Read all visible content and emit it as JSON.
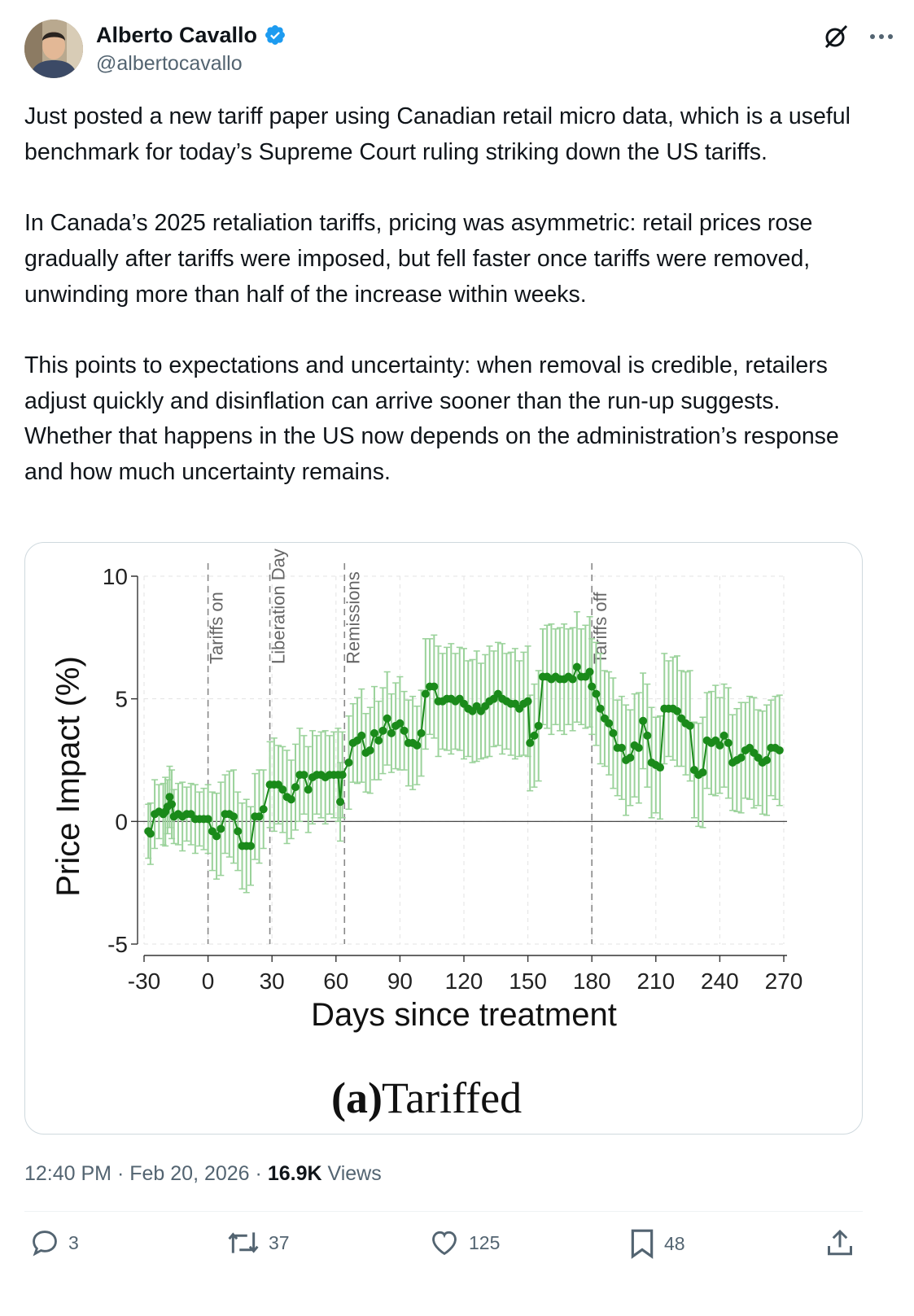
{
  "author": {
    "display_name": "Alberto Cavallo",
    "handle": "@albertocavallo",
    "verified": true,
    "avatar_icon": "avatar-photo"
  },
  "header_icons": [
    "grok-icon",
    "more-icon"
  ],
  "tweet": {
    "paragraphs": [
      "Just posted a new tariff paper using Canadian retail micro data, which is a useful benchmark for today’s Supreme Court ruling striking down the US tariffs.",
      "In Canada’s 2025 retaliation tariffs, pricing was asymmetric: retail prices rose gradually after tariffs were imposed, but fell faster once tariffs were removed, unwinding more than half of the increase within weeks.",
      "This points to expectations and uncertainty: when removal is credible, retailers adjust quickly and disinflation can arrive sooner than the run-up suggests. Whether that happens in the US now depends on the administration’s response and how much uncertainty remains."
    ]
  },
  "chart_data": {
    "type": "scatter",
    "title": "(a) Tariffed",
    "title_prefix": "(a)",
    "title_main": "Tariffed",
    "xlabel": "Days since treatment",
    "ylabel": "Price Impact (%)",
    "xlim": [
      -30,
      270
    ],
    "ylim": [
      -5,
      10
    ],
    "x_ticks": [
      -30,
      0,
      30,
      60,
      90,
      120,
      150,
      180,
      210,
      240,
      270
    ],
    "y_ticks": [
      -5,
      0,
      5,
      10
    ],
    "grid": true,
    "series_color": "#1a8a1a",
    "ci_color": "#9ad29a",
    "events": [
      {
        "day": 0,
        "label": "Tariffs on"
      },
      {
        "day": 29,
        "label": "Liberation Day"
      },
      {
        "day": 64,
        "label": "Remissions"
      },
      {
        "day": 180,
        "label": "Tariffs off"
      }
    ],
    "points": [
      [
        -28,
        -0.4
      ],
      [
        -27,
        -0.5
      ],
      [
        -25,
        0.3
      ],
      [
        -23,
        0.4
      ],
      [
        -21,
        0.3
      ],
      [
        -20,
        0.4
      ],
      [
        -19,
        0.6
      ],
      [
        -18,
        1.0
      ],
      [
        -17,
        0.7
      ],
      [
        -16,
        0.2
      ],
      [
        -14,
        0.3
      ],
      [
        -12,
        0.2
      ],
      [
        -10,
        0.3
      ],
      [
        -8,
        0.3
      ],
      [
        -6,
        0.1
      ],
      [
        -4,
        0.1
      ],
      [
        -2,
        0.1
      ],
      [
        0,
        0.1
      ],
      [
        2,
        -0.4
      ],
      [
        4,
        -0.6
      ],
      [
        6,
        -0.3
      ],
      [
        8,
        0.3
      ],
      [
        10,
        0.3
      ],
      [
        12,
        0.2
      ],
      [
        14,
        -0.4
      ],
      [
        16,
        -1.0
      ],
      [
        18,
        -1.0
      ],
      [
        20,
        -1.0
      ],
      [
        22,
        0.2
      ],
      [
        24,
        0.2
      ],
      [
        26,
        0.5
      ],
      [
        29,
        1.5
      ],
      [
        31,
        1.5
      ],
      [
        33,
        1.5
      ],
      [
        35,
        1.3
      ],
      [
        37,
        1.0
      ],
      [
        39,
        0.9
      ],
      [
        41,
        1.4
      ],
      [
        43,
        1.9
      ],
      [
        45,
        1.9
      ],
      [
        47,
        1.3
      ],
      [
        49,
        1.8
      ],
      [
        51,
        1.9
      ],
      [
        53,
        1.9
      ],
      [
        55,
        1.8
      ],
      [
        57,
        1.9
      ],
      [
        59,
        1.9
      ],
      [
        61,
        1.9
      ],
      [
        62,
        0.8
      ],
      [
        63,
        1.9
      ],
      [
        66,
        2.4
      ],
      [
        68,
        3.2
      ],
      [
        70,
        3.3
      ],
      [
        72,
        3.5
      ],
      [
        74,
        2.8
      ],
      [
        76,
        2.9
      ],
      [
        78,
        3.6
      ],
      [
        80,
        3.3
      ],
      [
        82,
        3.7
      ],
      [
        84,
        4.2
      ],
      [
        86,
        3.6
      ],
      [
        88,
        3.9
      ],
      [
        90,
        4.0
      ],
      [
        92,
        3.7
      ],
      [
        94,
        3.2
      ],
      [
        96,
        3.2
      ],
      [
        98,
        3.1
      ],
      [
        100,
        3.6
      ],
      [
        102,
        5.2
      ],
      [
        104,
        5.5
      ],
      [
        106,
        5.5
      ],
      [
        108,
        4.9
      ],
      [
        110,
        4.9
      ],
      [
        112,
        5.0
      ],
      [
        114,
        5.0
      ],
      [
        116,
        4.9
      ],
      [
        118,
        5.0
      ],
      [
        120,
        4.8
      ],
      [
        122,
        4.6
      ],
      [
        124,
        4.5
      ],
      [
        126,
        4.7
      ],
      [
        128,
        4.5
      ],
      [
        130,
        4.7
      ],
      [
        132,
        4.9
      ],
      [
        134,
        5.0
      ],
      [
        136,
        5.2
      ],
      [
        138,
        5.0
      ],
      [
        140,
        4.9
      ],
      [
        142,
        4.8
      ],
      [
        144,
        4.8
      ],
      [
        146,
        4.6
      ],
      [
        148,
        4.8
      ],
      [
        150,
        4.9
      ],
      [
        151,
        3.2
      ],
      [
        153,
        3.5
      ],
      [
        155,
        3.9
      ],
      [
        157,
        5.9
      ],
      [
        159,
        5.9
      ],
      [
        161,
        5.8
      ],
      [
        163,
        5.9
      ],
      [
        165,
        5.8
      ],
      [
        167,
        5.8
      ],
      [
        169,
        5.9
      ],
      [
        171,
        5.8
      ],
      [
        173,
        6.3
      ],
      [
        175,
        5.9
      ],
      [
        177,
        5.9
      ],
      [
        179,
        6.1
      ],
      [
        180,
        5.5
      ],
      [
        182,
        5.2
      ],
      [
        184,
        4.6
      ],
      [
        186,
        4.2
      ],
      [
        188,
        4.0
      ],
      [
        190,
        3.6
      ],
      [
        192,
        3.0
      ],
      [
        194,
        3.0
      ],
      [
        196,
        2.5
      ],
      [
        198,
        2.6
      ],
      [
        200,
        3.1
      ],
      [
        202,
        3.0
      ],
      [
        204,
        4.1
      ],
      [
        206,
        3.5
      ],
      [
        208,
        2.4
      ],
      [
        210,
        2.3
      ],
      [
        212,
        2.2
      ],
      [
        214,
        4.6
      ],
      [
        216,
        4.6
      ],
      [
        218,
        4.6
      ],
      [
        220,
        4.5
      ],
      [
        222,
        4.2
      ],
      [
        224,
        4.0
      ],
      [
        226,
        3.9
      ],
      [
        228,
        2.1
      ],
      [
        230,
        1.9
      ],
      [
        232,
        2.0
      ],
      [
        234,
        3.3
      ],
      [
        236,
        3.2
      ],
      [
        238,
        3.3
      ],
      [
        240,
        3.1
      ],
      [
        242,
        3.5
      ],
      [
        244,
        3.2
      ],
      [
        246,
        2.4
      ],
      [
        248,
        2.5
      ],
      [
        250,
        2.6
      ],
      [
        252,
        2.9
      ],
      [
        254,
        3.0
      ],
      [
        256,
        2.8
      ],
      [
        258,
        2.6
      ],
      [
        260,
        2.4
      ],
      [
        262,
        2.5
      ],
      [
        264,
        3.0
      ],
      [
        266,
        3.0
      ],
      [
        268,
        2.9
      ]
    ]
  },
  "meta": {
    "time": "12:40 PM",
    "date": "Feb 20, 2026",
    "separator": "·",
    "views_count": "16.9K",
    "views_label": "Views"
  },
  "actions": {
    "replies": "3",
    "reposts": "37",
    "likes": "125",
    "bookmarks": "48"
  },
  "colors": {
    "text": "#0f1419",
    "muted": "#536471",
    "verified_blue": "#1d9bf0",
    "border": "#cfd9de"
  }
}
